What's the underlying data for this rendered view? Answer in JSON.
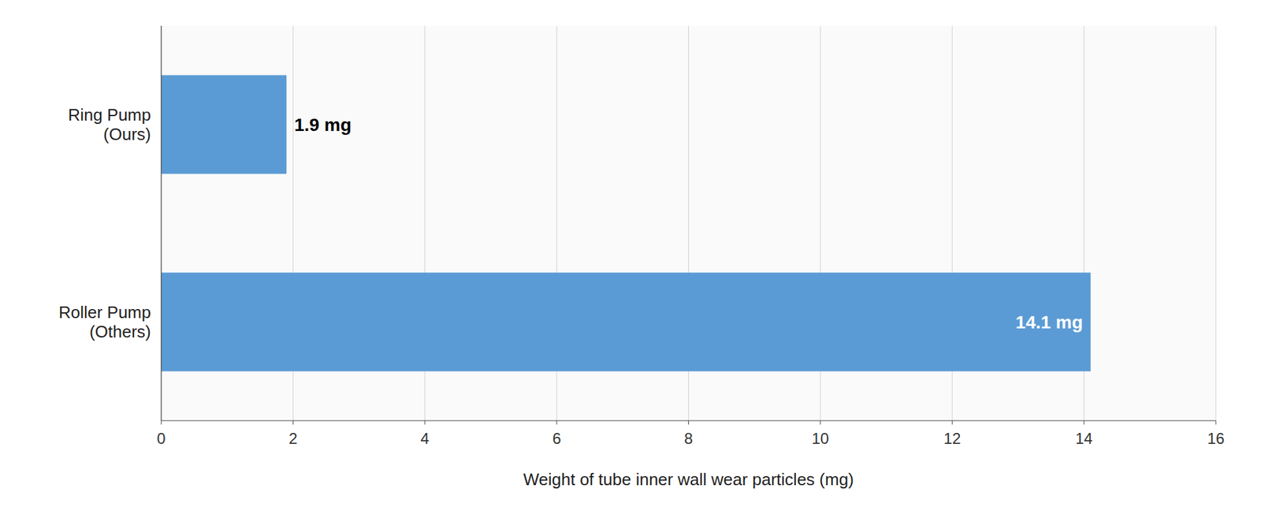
{
  "chart_data": {
    "type": "bar",
    "orientation": "horizontal",
    "categories": [
      "Roller Pump\n(Others)",
      "Ring Pump\n(Ours)"
    ],
    "values": [
      14.1,
      1.9
    ],
    "value_labels": [
      "14.1 mg",
      "1.9 mg"
    ],
    "data_labels": true,
    "color": "#5b9bd5",
    "xlabel": "Weight of tube inner wall wear particles (mg)",
    "xlim": [
      0,
      16
    ],
    "xticks": [
      0,
      2,
      4,
      6,
      8,
      10,
      12,
      14,
      16
    ],
    "grid": true
  }
}
